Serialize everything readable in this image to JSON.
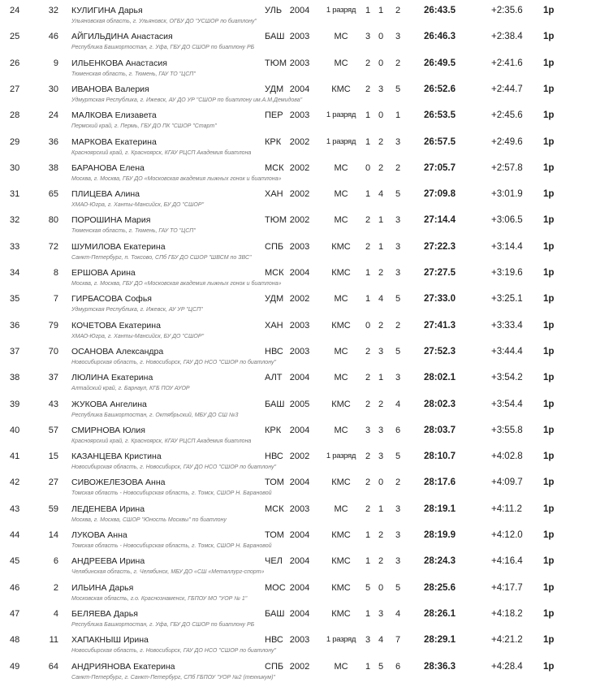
{
  "rows": [
    {
      "place": "24",
      "bib": "32",
      "name": "КУЛИГИНА Дарья",
      "region": "УЛЬ",
      "year": "2004",
      "rank": "1 разряд",
      "s1": "1",
      "s2": "1",
      "s3": "2",
      "time": "26:43.5",
      "gap": "+2:35.6",
      "cls": "1р",
      "org": "Ульяновская область,  г. Ульяновск, ОГБУ ДО \"УСШОР по биатлону\""
    },
    {
      "place": "25",
      "bib": "46",
      "name": "АЙГИЛЬДИНА Анастасия",
      "region": "БАШ",
      "year": "2003",
      "rank": "МС",
      "s1": "3",
      "s2": "0",
      "s3": "3",
      "time": "26:46.3",
      "gap": "+2:38.4",
      "cls": "1р",
      "org": "Республика Башкортостан,  г. Уфа, ГБУ ДО СШОР по биатлону РБ"
    },
    {
      "place": "26",
      "bib": "9",
      "name": "ИЛЬЕНКОВА Анастасия",
      "region": "ТЮМ",
      "year": "2003",
      "rank": "МС",
      "s1": "2",
      "s2": "0",
      "s3": "2",
      "time": "26:49.5",
      "gap": "+2:41.6",
      "cls": "1р",
      "org": "Тюменская область,  г. Тюмень, ГАУ ТО \"ЦСП\""
    },
    {
      "place": "27",
      "bib": "30",
      "name": "ИВАНОВА Валерия",
      "region": "УДМ",
      "year": "2004",
      "rank": "КМС",
      "s1": "2",
      "s2": "3",
      "s3": "5",
      "time": "26:52.6",
      "gap": "+2:44.7",
      "cls": "1р",
      "org": "Удмуртская Республика,  г. Ижевск, АУ ДО УР \"СШОР по биатлону им.А.М.Демидова\""
    },
    {
      "place": "28",
      "bib": "24",
      "name": "МАЛКОВА Елизавета",
      "region": "ПЕР",
      "year": "2003",
      "rank": "1 разряд",
      "s1": "1",
      "s2": "0",
      "s3": "1",
      "time": "26:53.5",
      "gap": "+2:45.6",
      "cls": "1р",
      "org": "Пермский край,  г. Пермь, ГБУ ДО ПК \"СШОР \"Старт\""
    },
    {
      "place": "29",
      "bib": "36",
      "name": "МАРКОВА Екатерина",
      "region": "КРК",
      "year": "2002",
      "rank": "1 разряд",
      "s1": "1",
      "s2": "2",
      "s3": "3",
      "time": "26:57.5",
      "gap": "+2:49.6",
      "cls": "1р",
      "org": "Красноярский край,  г. Красноярск, КГАУ РЦСП Академия биатлона"
    },
    {
      "place": "30",
      "bib": "38",
      "name": "БАРАНОВА Елена",
      "region": "МСК",
      "year": "2002",
      "rank": "МС",
      "s1": "0",
      "s2": "2",
      "s3": "2",
      "time": "27:05.7",
      "gap": "+2:57.8",
      "cls": "1р",
      "org": "Москва,  г. Москва, ГБУ ДО «Московская академия лыжных гонок и биатлона»"
    },
    {
      "place": "31",
      "bib": "65",
      "name": "ПЛИЦЕВА Алина",
      "region": "ХАН",
      "year": "2002",
      "rank": "МС",
      "s1": "1",
      "s2": "4",
      "s3": "5",
      "time": "27:09.8",
      "gap": "+3:01.9",
      "cls": "1р",
      "org": "ХМАО-Югра,  г. Ханты-Мансийск, БУ ДО \"СШОР\""
    },
    {
      "place": "32",
      "bib": "80",
      "name": "ПОРОШИНА Мария",
      "region": "ТЮМ",
      "year": "2002",
      "rank": "МС",
      "s1": "2",
      "s2": "1",
      "s3": "3",
      "time": "27:14.4",
      "gap": "+3:06.5",
      "cls": "1р",
      "org": "Тюменская область,  г. Тюмень, ГАУ ТО \"ЦСП\""
    },
    {
      "place": "33",
      "bib": "72",
      "name": "ШУМИЛОВА Екатерина",
      "region": "СПБ",
      "year": "2003",
      "rank": "КМС",
      "s1": "2",
      "s2": "1",
      "s3": "3",
      "time": "27:22.3",
      "gap": "+3:14.4",
      "cls": "1р",
      "org": "Санкт-Петербург,  п. Токсово, СПб ГБУ ДО СШОР \"ШВСМ по ЗВС\""
    },
    {
      "place": "34",
      "bib": "8",
      "name": "ЕРШОВА Арина",
      "region": "МСК",
      "year": "2004",
      "rank": "КМС",
      "s1": "1",
      "s2": "2",
      "s3": "3",
      "time": "27:27.5",
      "gap": "+3:19.6",
      "cls": "1р",
      "org": "Москва,  г. Москва, ГБУ ДО «Московская академия лыжных гонок и биатлона»"
    },
    {
      "place": "35",
      "bib": "7",
      "name": "ГИРБАСОВА Софья",
      "region": "УДМ",
      "year": "2002",
      "rank": "МС",
      "s1": "1",
      "s2": "4",
      "s3": "5",
      "time": "27:33.0",
      "gap": "+3:25.1",
      "cls": "1р",
      "org": "Удмуртская Республика,  г. Ижевск, АУ УР \"ЦСП\""
    },
    {
      "place": "36",
      "bib": "79",
      "name": "КОЧЕТОВА Екатерина",
      "region": "ХАН",
      "year": "2003",
      "rank": "КМС",
      "s1": "0",
      "s2": "2",
      "s3": "2",
      "time": "27:41.3",
      "gap": "+3:33.4",
      "cls": "1р",
      "org": "ХМАО-Югра,  г. Ханты-Мансийск, БУ ДО \"СШОР\""
    },
    {
      "place": "37",
      "bib": "70",
      "name": "ОСАНОВА Александра",
      "region": "НВС",
      "year": "2003",
      "rank": "МС",
      "s1": "2",
      "s2": "3",
      "s3": "5",
      "time": "27:52.3",
      "gap": "+3:44.4",
      "cls": "1р",
      "org": "Новосибирская область,  г. Новосибирск, ГАУ ДО НСО \"СШОР по биатлону\""
    },
    {
      "place": "38",
      "bib": "37",
      "name": "ЛЮЛИНА Екатерина",
      "region": "АЛТ",
      "year": "2004",
      "rank": "МС",
      "s1": "2",
      "s2": "1",
      "s3": "3",
      "time": "28:02.1",
      "gap": "+3:54.2",
      "cls": "1р",
      "org": "Алтайский край,  г. Барнаул, КГБ ПОУ АУОР"
    },
    {
      "place": "39",
      "bib": "43",
      "name": "ЖУКОВА Ангелина",
      "region": "БАШ",
      "year": "2005",
      "rank": "КМС",
      "s1": "2",
      "s2": "2",
      "s3": "4",
      "time": "28:02.3",
      "gap": "+3:54.4",
      "cls": "1р",
      "org": "Республика Башкортостан,  г. Октябрьский, МБУ ДО СШ №3"
    },
    {
      "place": "40",
      "bib": "57",
      "name": "СМИРНОВА Юлия",
      "region": "КРК",
      "year": "2004",
      "rank": "МС",
      "s1": "3",
      "s2": "3",
      "s3": "6",
      "time": "28:03.7",
      "gap": "+3:55.8",
      "cls": "1р",
      "org": "Красноярский край,  г. Красноярск, КГАУ РЦСП Академия биатлона"
    },
    {
      "place": "41",
      "bib": "15",
      "name": "КАЗАНЦЕВА Кристина",
      "region": "НВС",
      "year": "2002",
      "rank": "1 разряд",
      "s1": "2",
      "s2": "3",
      "s3": "5",
      "time": "28:10.7",
      "gap": "+4:02.8",
      "cls": "1р",
      "org": "Новосибирская область,  г. Новосибирск, ГАУ ДО НСО \"СШОР по биатлону\""
    },
    {
      "place": "42",
      "bib": "27",
      "name": "СИВОЖЕЛЕЗОВА Анна",
      "region": "ТОМ",
      "year": "2004",
      "rank": "КМС",
      "s1": "2",
      "s2": "0",
      "s3": "2",
      "time": "28:17.6",
      "gap": "+4:09.7",
      "cls": "1р",
      "org": "Томская область  - Новосибирская область,  г. Томск, СШОР Н. Барановой"
    },
    {
      "place": "43",
      "bib": "59",
      "name": "ЛЕДЕНЕВА Ирина",
      "region": "МСК",
      "year": "2003",
      "rank": "МС",
      "s1": "2",
      "s2": "1",
      "s3": "3",
      "time": "28:19.1",
      "gap": "+4:11.2",
      "cls": "1р",
      "org": "Москва,  г. Москва, СШОР \"Юность Москвы\" по биатлону"
    },
    {
      "place": "44",
      "bib": "14",
      "name": "ЛУКОВА Анна",
      "region": "ТОМ",
      "year": "2004",
      "rank": "КМС",
      "s1": "1",
      "s2": "2",
      "s3": "3",
      "time": "28:19.9",
      "gap": "+4:12.0",
      "cls": "1р",
      "org": "Томская область  - Новосибирская область,  г. Томск, СШОР Н. Барановой"
    },
    {
      "place": "45",
      "bib": "6",
      "name": "АНДРЕЕВА Ирина",
      "region": "ЧЕЛ",
      "year": "2004",
      "rank": "КМС",
      "s1": "1",
      "s2": "2",
      "s3": "3",
      "time": "28:24.3",
      "gap": "+4:16.4",
      "cls": "1р",
      "org": "Челябинская область,  г. Челябинск, МБУ ДО «СШ «Металлург-спорт»"
    },
    {
      "place": "46",
      "bib": "2",
      "name": "ИЛЬИНА Дарья",
      "region": "МОС",
      "year": "2004",
      "rank": "КМС",
      "s1": "5",
      "s2": "0",
      "s3": "5",
      "time": "28:25.6",
      "gap": "+4:17.7",
      "cls": "1р",
      "org": "Московская область,  г.о. Краснознаменск, ГБПОУ МО \"УОР № 1\""
    },
    {
      "place": "47",
      "bib": "4",
      "name": "БЕЛЯЕВА Дарья",
      "region": "БАШ",
      "year": "2004",
      "rank": "КМС",
      "s1": "1",
      "s2": "3",
      "s3": "4",
      "time": "28:26.1",
      "gap": "+4:18.2",
      "cls": "1р",
      "org": "Республика Башкортостан,  г. Уфа, ГБУ ДО СШОР по биатлону РБ"
    },
    {
      "place": "48",
      "bib": "11",
      "name": "ХАПАКНЫШ Ирина",
      "region": "НВС",
      "year": "2003",
      "rank": "1 разряд",
      "s1": "3",
      "s2": "4",
      "s3": "7",
      "time": "28:29.1",
      "gap": "+4:21.2",
      "cls": "1р",
      "org": "Новосибирская область,  г. Новосибирск, ГАУ ДО НСО \"СШОР по биатлону\""
    },
    {
      "place": "49",
      "bib": "64",
      "name": "АНДРИЯНОВА Екатерина",
      "region": "СПБ",
      "year": "2002",
      "rank": "МС",
      "s1": "1",
      "s2": "5",
      "s3": "6",
      "time": "28:36.3",
      "gap": "+4:28.4",
      "cls": "1р",
      "org": "Санкт-Петербург,  г. Санкт-Петербург, СПб ГБПОУ \"УОР №2 (техникум)\""
    }
  ]
}
